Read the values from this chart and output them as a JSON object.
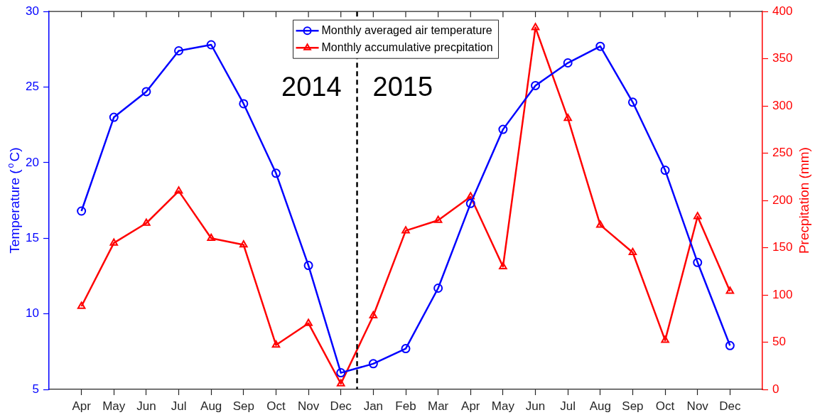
{
  "chart_data": {
    "type": "line",
    "ylabel": "Temperature ($^{o}$C)",
    "y2label": "Precpitation (mm)",
    "categories": [
      "Apr",
      "May",
      "Jun",
      "Jul",
      "Aug",
      "Sep",
      "Oct",
      "Nov",
      "Dec",
      "Jan",
      "Feb",
      "Mar",
      "Apr",
      "May",
      "Jun",
      "Jul",
      "Aug",
      "Sep",
      "Oct",
      "Nov",
      "Dec"
    ],
    "series": [
      {
        "name": "Monthly averaged air temperature",
        "color": "#0000ff",
        "marker": "circle",
        "values": [
          16.8,
          23.0,
          24.7,
          27.4,
          27.8,
          23.9,
          19.3,
          13.2,
          6.1,
          6.7,
          7.7,
          11.7,
          17.3,
          22.2,
          25.1,
          26.6,
          27.7,
          24.0,
          19.5,
          13.4,
          7.9
        ]
      },
      {
        "name": "Monthly accumulative precpitation",
        "color": "#ff0000",
        "marker": "triangle",
        "axis": "y2",
        "values": [
          88,
          155,
          176,
          210,
          160,
          153,
          47,
          70,
          6,
          78,
          168,
          179,
          204,
          130,
          383,
          287,
          174,
          145,
          52,
          183,
          104
        ]
      }
    ],
    "ylim": [
      5,
      30
    ],
    "yticks": [
      5,
      10,
      15,
      20,
      25,
      30
    ],
    "y2lim": [
      0,
      400
    ],
    "y2ticks": [
      0,
      50,
      100,
      150,
      200,
      250,
      300,
      350,
      400
    ],
    "annotations": [
      "2014",
      "2015"
    ],
    "legend": "top",
    "grid": false,
    "line_style": "solid"
  }
}
